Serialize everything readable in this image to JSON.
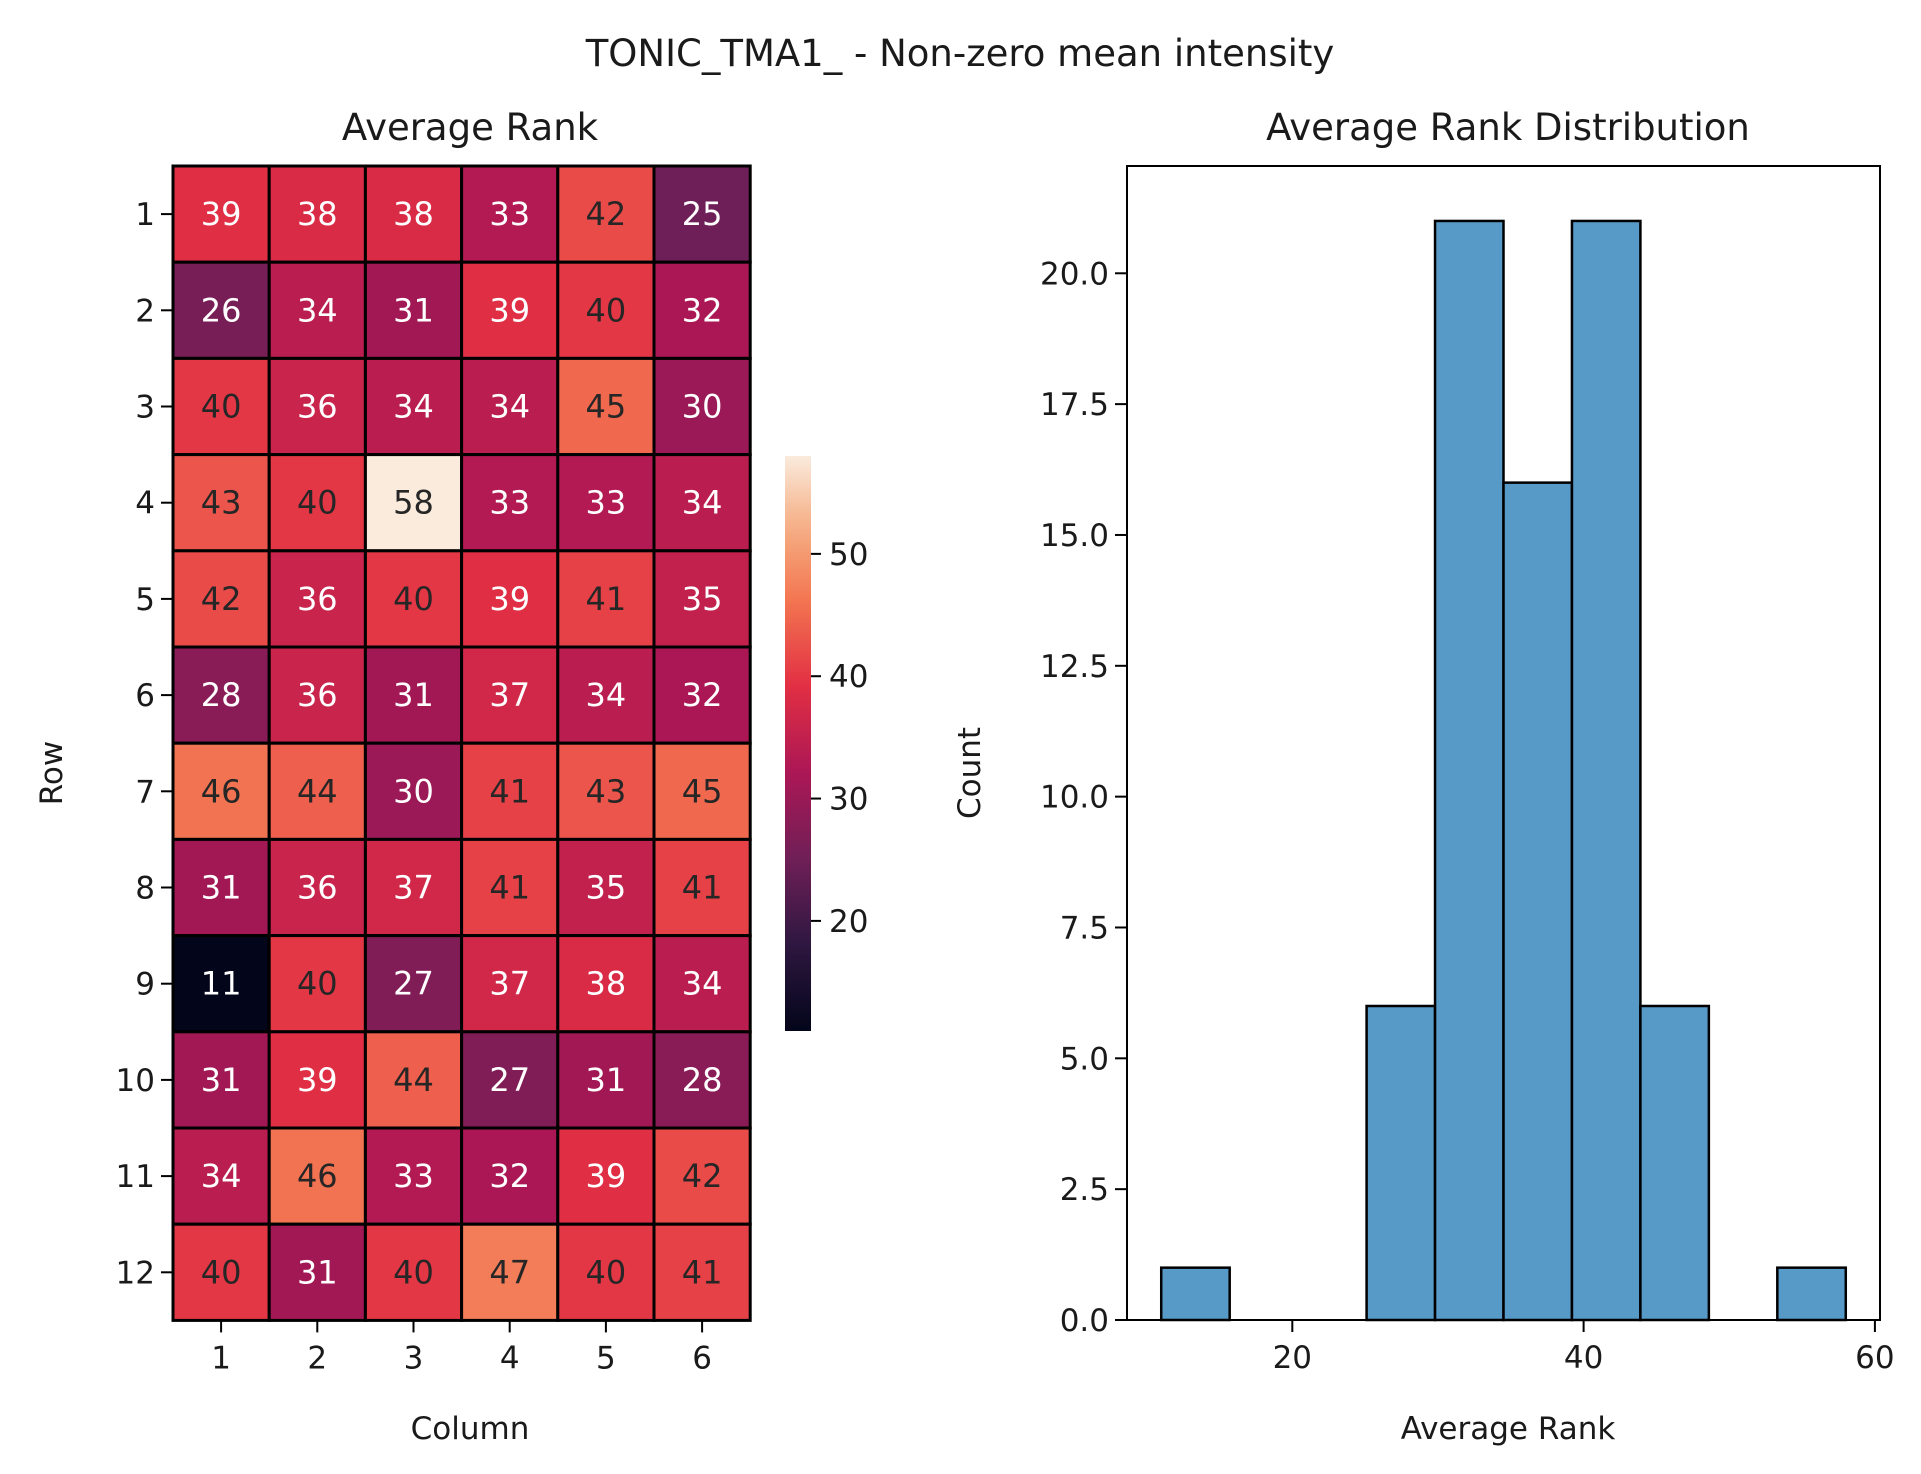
{
  "figure": {
    "suptitle": "TONIC_TMA1_ - Non-zero mean intensity"
  },
  "chart_data": [
    {
      "type": "heatmap",
      "title": "Average Rank",
      "xlabel": "Column",
      "ylabel": "Row",
      "x_ticks": [
        "1",
        "2",
        "3",
        "4",
        "5",
        "6"
      ],
      "y_ticks": [
        "1",
        "2",
        "3",
        "4",
        "5",
        "6",
        "7",
        "8",
        "9",
        "10",
        "11",
        "12"
      ],
      "values": [
        [
          39,
          38,
          38,
          33,
          42,
          25
        ],
        [
          26,
          34,
          31,
          39,
          40,
          32
        ],
        [
          40,
          36,
          34,
          34,
          45,
          30
        ],
        [
          43,
          40,
          58,
          33,
          33,
          34
        ],
        [
          42,
          36,
          40,
          39,
          41,
          35
        ],
        [
          28,
          36,
          31,
          37,
          34,
          32
        ],
        [
          46,
          44,
          30,
          41,
          43,
          45
        ],
        [
          31,
          36,
          37,
          41,
          35,
          41
        ],
        [
          11,
          40,
          27,
          37,
          38,
          34
        ],
        [
          31,
          39,
          44,
          27,
          31,
          28
        ],
        [
          34,
          46,
          33,
          32,
          39,
          42
        ],
        [
          40,
          31,
          40,
          47,
          40,
          41
        ]
      ],
      "colormap": "rocket",
      "vmin": 11,
      "vmax": 58,
      "colorbar_ticks": [
        "20",
        "30",
        "40",
        "50"
      ],
      "grid": false
    },
    {
      "type": "bar",
      "title": "Average Rank Distribution",
      "xlabel": "Average Rank",
      "ylabel": "Count",
      "bin_edges": [
        11,
        15.7,
        20.4,
        25.1,
        29.8,
        34.5,
        39.2,
        43.9,
        48.6,
        53.3,
        58
      ],
      "counts": [
        1,
        0,
        0,
        6,
        21,
        16,
        21,
        6,
        0,
        1
      ],
      "xlim": [
        8.65,
        60.35
      ],
      "ylim": [
        0,
        22.05
      ],
      "x_ticks": [
        "20",
        "40",
        "60"
      ],
      "y_ticks": [
        "0.0",
        "2.5",
        "5.0",
        "7.5",
        "10.0",
        "12.5",
        "15.0",
        "17.5",
        "20.0"
      ],
      "bar_color": "#5799c7",
      "grid": false
    }
  ]
}
